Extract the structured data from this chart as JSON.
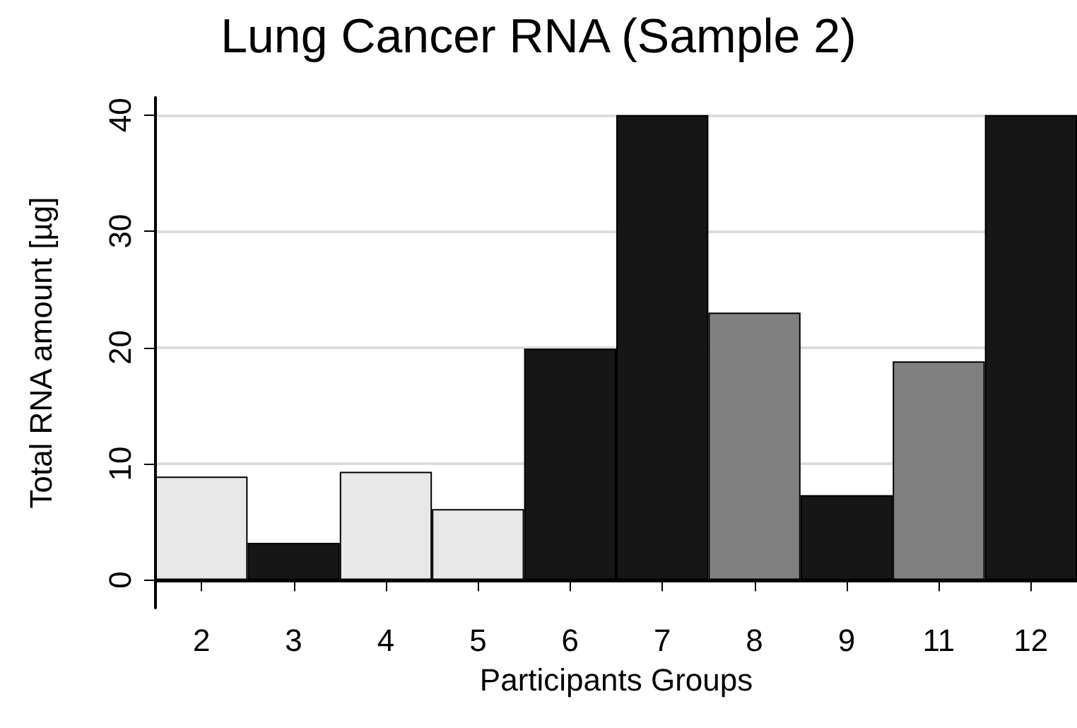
{
  "chart_data": {
    "type": "bar",
    "title": "Lung Cancer RNA (Sample 2)",
    "xlabel": "Participants Groups",
    "ylabel": "Total RNA amount [µg]",
    "categories": [
      "2",
      "3",
      "4",
      "5",
      "6",
      "7",
      "8",
      "9",
      "11",
      "12"
    ],
    "values": [
      8.9,
      3.2,
      9.3,
      6.1,
      19.9,
      40,
      23.0,
      7.3,
      18.8,
      40
    ],
    "colors": [
      "#e8e8e8",
      "#161616",
      "#e8e8e8",
      "#e8e8e8",
      "#161616",
      "#161616",
      "#808080",
      "#161616",
      "#808080",
      "#161616"
    ],
    "ylim": [
      -2.4,
      41.5
    ],
    "yticks": [
      0,
      10,
      20,
      30,
      40
    ],
    "grid": "y"
  }
}
